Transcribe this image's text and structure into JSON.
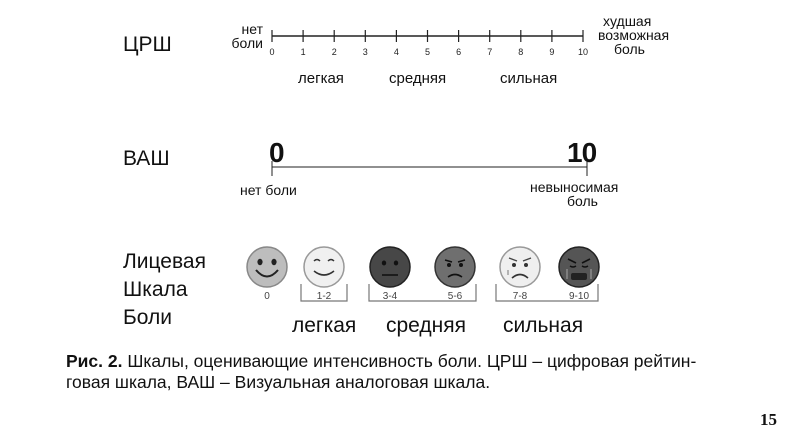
{
  "nrs": {
    "label": "ЦРШ",
    "left_label_line1": "нет",
    "left_label_line2": "боли",
    "right_label_line1": "худшая",
    "right_label_line2": "возможная",
    "right_label_line3": "боль",
    "ticks": [
      "0",
      "1",
      "2",
      "3",
      "4",
      "5",
      "6",
      "7",
      "8",
      "9",
      "10"
    ],
    "categories": [
      "легкая",
      "средняя",
      "сильная"
    ]
  },
  "vas": {
    "label": "ВАШ",
    "min": "0",
    "max": "10",
    "left_label": "нет боли",
    "right_label_line1": "невыносимая",
    "right_label_line2": "боль"
  },
  "faces": {
    "label_line1": "Лицевая",
    "label_line2": "Шкала",
    "label_line3": "Боли",
    "items": [
      {
        "label": "0",
        "mood": "smile-big"
      },
      {
        "label": "1-2",
        "mood": "smile"
      },
      {
        "label": "3-4",
        "mood": "neutral-dark"
      },
      {
        "label": "5-6",
        "mood": "frown"
      },
      {
        "label": "7-8",
        "mood": "worried"
      },
      {
        "label": "9-10",
        "mood": "crying"
      }
    ],
    "categories": [
      "легкая",
      "средняя",
      "сильная"
    ],
    "colors": {
      "face0": "#bdbdbd",
      "face1": "#f0f0f0",
      "face2": "#474747",
      "face3": "#6f6f6f",
      "face4": "#efefef",
      "face5": "#555555"
    }
  },
  "caption": {
    "bold": "Рис. 2.",
    "line1": " Шкалы, оценивающие интенсивность боли. ЦРШ – цифровая рейтин-",
    "line2": "говая шкала, ВАШ – Визуальная аналоговая шкала."
  },
  "page_number": "15"
}
